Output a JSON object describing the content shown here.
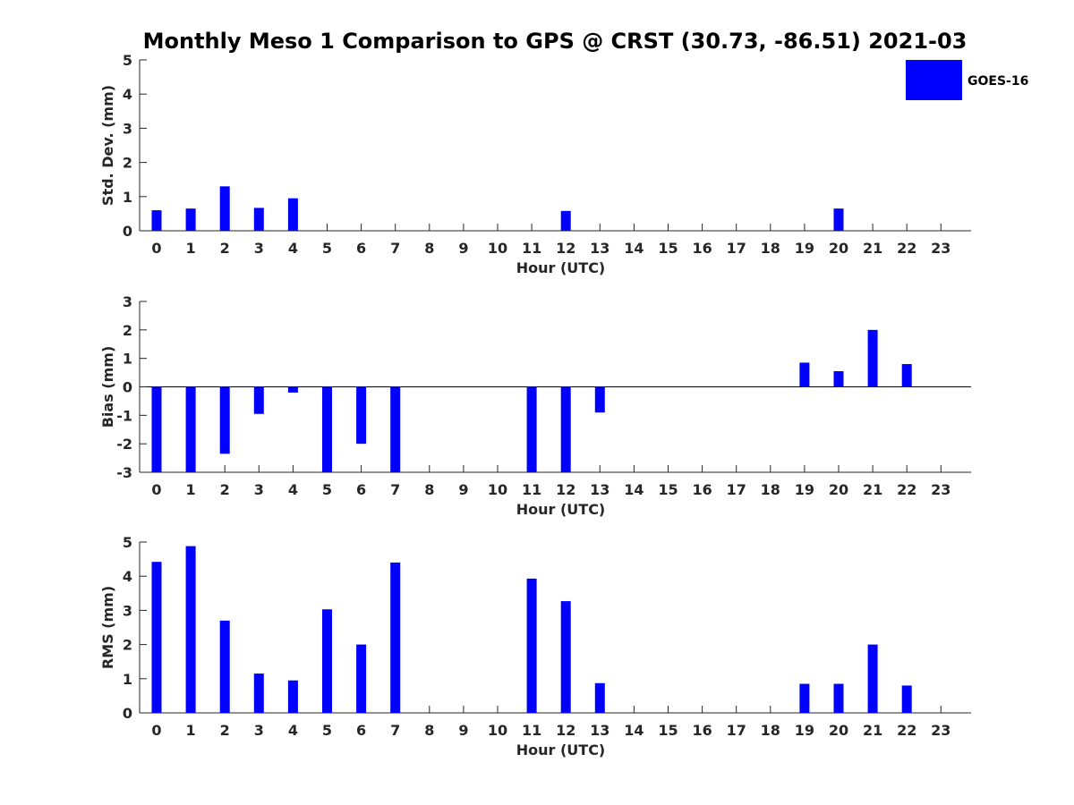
{
  "title": "Monthly Meso 1 Comparison to GPS @ CRST (30.73, -86.51) 2021-03",
  "legend": {
    "label": "GOES-16",
    "color": "#0000ff",
    "placement": "top-right"
  },
  "chart_data": [
    {
      "type": "bar",
      "ylabel": "Std. Dev. (mm)",
      "xlabel": "Hour (UTC)",
      "ylim": [
        0,
        5
      ],
      "yticks": [
        0,
        1,
        2,
        3,
        4,
        5
      ],
      "categories": [
        "0",
        "1",
        "2",
        "3",
        "4",
        "5",
        "6",
        "7",
        "8",
        "9",
        "10",
        "11",
        "12",
        "13",
        "14",
        "15",
        "16",
        "17",
        "18",
        "19",
        "20",
        "21",
        "22",
        "23"
      ],
      "series": [
        {
          "color": "#0000ff",
          "values": [
            0.6,
            0.65,
            1.3,
            0.67,
            0.95,
            null,
            null,
            null,
            null,
            null,
            null,
            null,
            0.58,
            null,
            null,
            null,
            null,
            null,
            null,
            null,
            0.65,
            null,
            null,
            null
          ]
        }
      ]
    },
    {
      "type": "bar",
      "ylabel": "Bias (mm)",
      "xlabel": "Hour (UTC)",
      "ylim": [
        -3,
        3
      ],
      "yticks": [
        -3,
        -2,
        -1,
        0,
        1,
        2,
        3
      ],
      "zero_line": true,
      "categories": [
        "0",
        "1",
        "2",
        "3",
        "4",
        "5",
        "6",
        "7",
        "8",
        "9",
        "10",
        "11",
        "12",
        "13",
        "14",
        "15",
        "16",
        "17",
        "18",
        "19",
        "20",
        "21",
        "22",
        "23"
      ],
      "series": [
        {
          "color": "#0000ff",
          "values": [
            -3.0,
            -3.0,
            -2.35,
            -0.95,
            -0.2,
            -3.0,
            -2.0,
            -3.0,
            null,
            null,
            null,
            -3.0,
            -3.0,
            -0.9,
            null,
            null,
            null,
            null,
            null,
            0.85,
            0.55,
            2.0,
            0.8,
            null
          ]
        }
      ]
    },
    {
      "type": "bar",
      "ylabel": "RMS (mm)",
      "xlabel": "Hour (UTC)",
      "ylim": [
        0,
        5
      ],
      "yticks": [
        0,
        1,
        2,
        3,
        4,
        5
      ],
      "categories": [
        "0",
        "1",
        "2",
        "3",
        "4",
        "5",
        "6",
        "7",
        "8",
        "9",
        "10",
        "11",
        "12",
        "13",
        "14",
        "15",
        "16",
        "17",
        "18",
        "19",
        "20",
        "21",
        "22",
        "23"
      ],
      "series": [
        {
          "color": "#0000ff",
          "values": [
            4.42,
            4.88,
            2.7,
            1.15,
            0.95,
            3.03,
            2.0,
            4.4,
            null,
            null,
            null,
            3.93,
            3.27,
            0.87,
            null,
            null,
            null,
            null,
            null,
            0.85,
            0.85,
            2.0,
            0.8,
            null
          ]
        }
      ]
    }
  ]
}
